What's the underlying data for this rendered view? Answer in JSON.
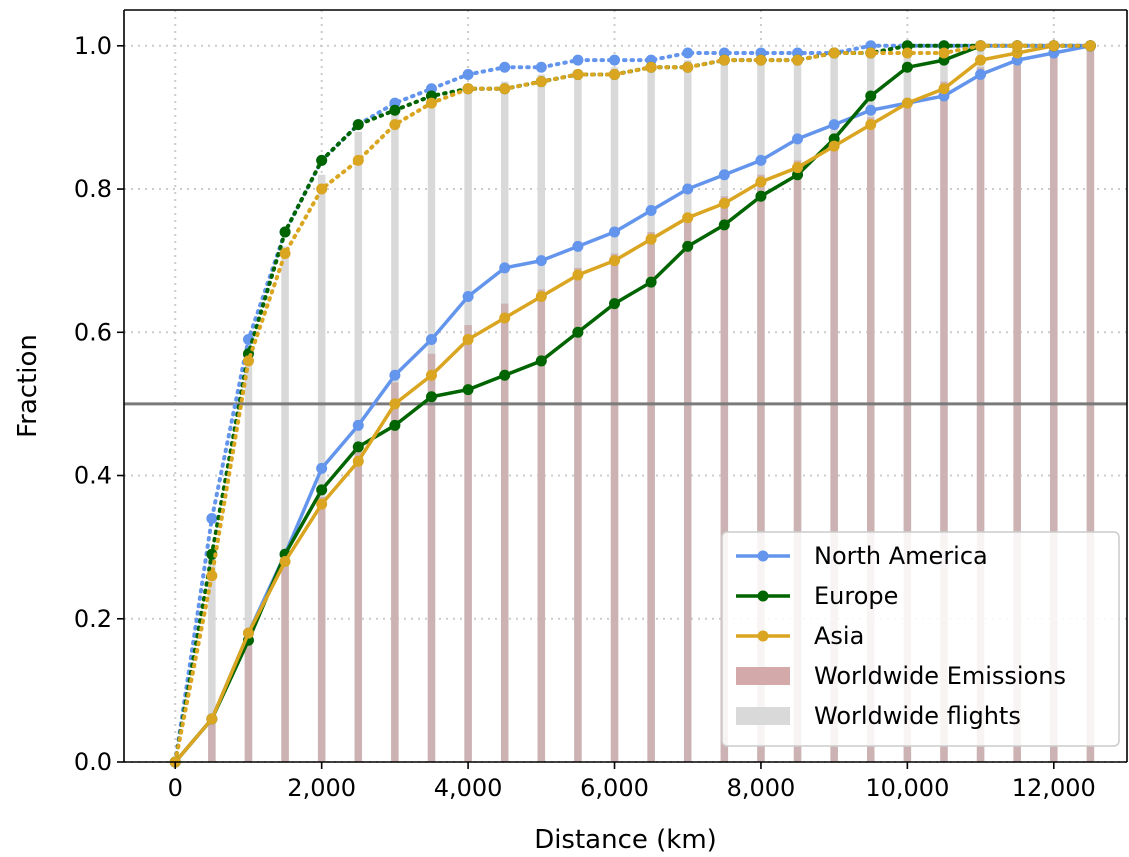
{
  "chart_data": {
    "type": "line",
    "xlabel": "Distance (km)",
    "ylabel": "Fraction",
    "xlim": [
      -700,
      13000
    ],
    "ylim": [
      0,
      1.05
    ],
    "x_ticks": [
      0,
      2000,
      4000,
      6000,
      8000,
      10000,
      12000
    ],
    "x_tick_labels": [
      "0",
      "2,000",
      "4,000",
      "6,000",
      "8,000",
      "10,000",
      "12,000"
    ],
    "y_ticks": [
      0,
      0.2,
      0.4,
      0.6,
      0.8,
      1.0
    ],
    "y_tick_labels": [
      "0.0",
      "0.2",
      "0.4",
      "0.6",
      "0.8",
      "1.0"
    ],
    "grid": "dotted",
    "reference_line_y": 0.5,
    "x": [
      0,
      500,
      1000,
      1500,
      2000,
      2500,
      3000,
      3500,
      4000,
      4500,
      5000,
      5500,
      6000,
      6500,
      7000,
      7500,
      8000,
      8500,
      9000,
      9500,
      10000,
      10500,
      11000,
      11500,
      12000,
      12500
    ],
    "series": [
      {
        "name": "North America",
        "measure": "emissions",
        "style": "solid",
        "color": "#6495ed",
        "values": [
          0.0,
          0.06,
          0.18,
          0.29,
          0.41,
          0.47,
          0.54,
          0.59,
          0.65,
          0.69,
          0.7,
          0.72,
          0.74,
          0.77,
          0.8,
          0.82,
          0.84,
          0.87,
          0.89,
          0.91,
          0.92,
          0.93,
          0.96,
          0.98,
          0.99,
          1.0
        ]
      },
      {
        "name": "Europe",
        "measure": "emissions",
        "style": "solid",
        "color": "#006400",
        "values": [
          0.0,
          0.06,
          0.17,
          0.29,
          0.38,
          0.44,
          0.47,
          0.51,
          0.52,
          0.54,
          0.56,
          0.6,
          0.64,
          0.67,
          0.72,
          0.75,
          0.79,
          0.82,
          0.87,
          0.93,
          0.97,
          0.98,
          1.0,
          1.0,
          1.0,
          1.0
        ]
      },
      {
        "name": "Asia",
        "measure": "emissions",
        "style": "solid",
        "color": "#daa520",
        "values": [
          0.0,
          0.06,
          0.18,
          0.28,
          0.36,
          0.42,
          0.5,
          0.54,
          0.59,
          0.62,
          0.65,
          0.68,
          0.7,
          0.73,
          0.76,
          0.78,
          0.81,
          0.83,
          0.86,
          0.89,
          0.92,
          0.94,
          0.98,
          0.99,
          1.0,
          1.0
        ]
      },
      {
        "name": "North America",
        "measure": "flights",
        "style": "dotted",
        "color": "#6495ed",
        "values": [
          0.0,
          0.34,
          0.59,
          0.74,
          0.84,
          0.89,
          0.92,
          0.94,
          0.96,
          0.97,
          0.97,
          0.98,
          0.98,
          0.98,
          0.99,
          0.99,
          0.99,
          0.99,
          0.99,
          1.0,
          1.0,
          1.0,
          1.0,
          1.0,
          1.0,
          1.0
        ]
      },
      {
        "name": "Europe",
        "measure": "flights",
        "style": "dotted",
        "color": "#006400",
        "values": [
          0.0,
          0.29,
          0.57,
          0.74,
          0.84,
          0.89,
          0.91,
          0.93,
          0.94,
          0.94,
          0.95,
          0.96,
          0.96,
          0.97,
          0.97,
          0.98,
          0.98,
          0.98,
          0.99,
          0.99,
          1.0,
          1.0,
          1.0,
          1.0,
          1.0,
          1.0
        ]
      },
      {
        "name": "Asia",
        "measure": "flights",
        "style": "dotted",
        "color": "#daa520",
        "values": [
          0.0,
          0.26,
          0.56,
          0.71,
          0.8,
          0.84,
          0.89,
          0.92,
          0.94,
          0.94,
          0.95,
          0.96,
          0.96,
          0.97,
          0.97,
          0.98,
          0.98,
          0.98,
          0.99,
          0.99,
          0.99,
          0.99,
          1.0,
          1.0,
          1.0,
          1.0
        ]
      }
    ],
    "bars": [
      {
        "name": "Worldwide Emissions",
        "color": "#c8a8a8",
        "opacity": 0.8,
        "values": [
          0.0,
          0.06,
          0.17,
          0.29,
          0.37,
          0.44,
          0.53,
          0.57,
          0.61,
          0.64,
          0.66,
          0.69,
          0.71,
          0.74,
          0.76,
          0.79,
          0.82,
          0.84,
          0.87,
          0.9,
          0.92,
          0.95,
          0.97,
          0.99,
          1.0,
          1.0
        ]
      },
      {
        "name": "Worldwide flights",
        "color": "#d9d9d9",
        "opacity": 1.0,
        "values": [
          0.0,
          0.29,
          0.56,
          0.72,
          0.82,
          0.88,
          0.91,
          0.93,
          0.94,
          0.95,
          0.96,
          0.96,
          0.97,
          0.97,
          0.98,
          0.98,
          0.98,
          0.99,
          0.99,
          0.99,
          0.99,
          1.0,
          1.0,
          1.0,
          1.0,
          1.0
        ]
      }
    ],
    "legend": {
      "position": "lower-right",
      "entries": [
        {
          "label": "North America",
          "kind": "line",
          "color": "#6495ed"
        },
        {
          "label": "Europe",
          "kind": "line",
          "color": "#006400"
        },
        {
          "label": "Asia",
          "kind": "line",
          "color": "#daa520"
        },
        {
          "label": "Worldwide Emissions",
          "kind": "patch",
          "color": "#d4a9a9"
        },
        {
          "label": "Worldwide flights",
          "kind": "patch",
          "color": "#d9d9d9"
        }
      ]
    }
  }
}
